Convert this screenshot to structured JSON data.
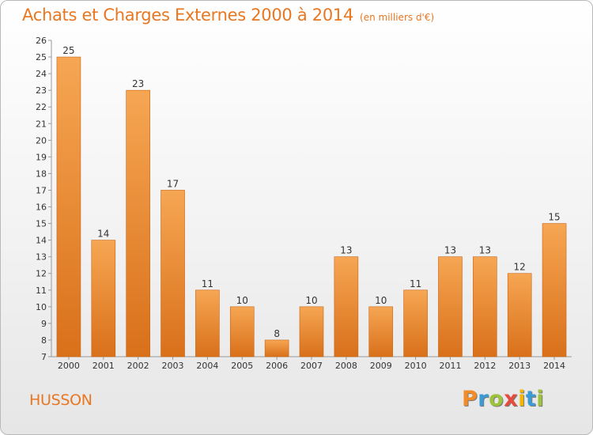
{
  "header": {
    "title": "Achats et Charges Externes 2000 à 2014",
    "unit": "(en milliers d'€)"
  },
  "footer": {
    "commune": "HUSSON",
    "brand": "Proxiti",
    "brand_colors": [
      "#f28c28",
      "#3a9bd6",
      "#9cc33b",
      "#e64b3c",
      "#f2b705",
      "#3a9bd6",
      "#9cc33b"
    ]
  },
  "colors": {
    "bar_top": "#f6a653",
    "bar_bottom": "#d9701a",
    "accent": "#e87722"
  },
  "chart_data": {
    "type": "bar",
    "title": "Achats et Charges Externes 2000 à 2014",
    "subtitle": "(en milliers d'€)",
    "categories": [
      "2000",
      "2001",
      "2002",
      "2003",
      "2004",
      "2005",
      "2006",
      "2007",
      "2008",
      "2009",
      "2010",
      "2011",
      "2012",
      "2013",
      "2014"
    ],
    "values": [
      25,
      14,
      23,
      17,
      11,
      10,
      8,
      10,
      13,
      10,
      11,
      13,
      13,
      12,
      15
    ],
    "ylim": [
      7,
      26
    ],
    "yticks": [
      7,
      8,
      9,
      10,
      11,
      12,
      13,
      14,
      15,
      16,
      17,
      18,
      19,
      20,
      21,
      22,
      23,
      24,
      25,
      26
    ],
    "grid": false,
    "data_labels": true
  }
}
